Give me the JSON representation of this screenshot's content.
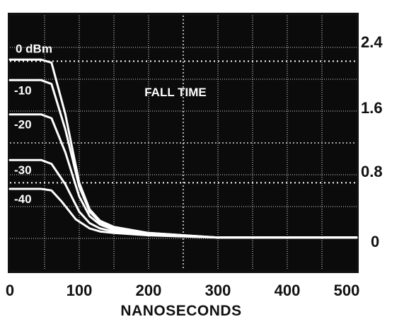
{
  "chart_data": {
    "type": "line",
    "title": "FALL TIME",
    "xlabel": "NANOSECONDS",
    "ylabel": "",
    "xlim": [
      0,
      500
    ],
    "ylim": [
      -0.35,
      3.0
    ],
    "x_ticks": [
      "0",
      "100",
      "200",
      "300",
      "400",
      "500"
    ],
    "y_ticks": [
      "2.4",
      "1.6",
      "0.8",
      "0"
    ],
    "grid": true,
    "colors": {
      "background": "#111111",
      "screen": "#0b0b0b",
      "trace": "#ffffff",
      "grid": "#d8d8d8",
      "text": "#111111"
    },
    "series": [
      {
        "name": "0 dBm",
        "x": [
          0,
          45,
          60,
          80,
          100,
          115,
          130,
          150,
          200,
          300,
          500
        ],
        "values": [
          2.42,
          2.42,
          2.38,
          1.7,
          0.8,
          0.45,
          0.3,
          0.22,
          0.14,
          0.08,
          0.08
        ]
      },
      {
        "name": "-10",
        "x": [
          0,
          45,
          60,
          80,
          100,
          115,
          130,
          150,
          200,
          300,
          500
        ],
        "values": [
          2.15,
          2.15,
          2.1,
          1.5,
          0.75,
          0.42,
          0.28,
          0.2,
          0.14,
          0.08,
          0.08
        ]
      },
      {
        "name": "-20",
        "x": [
          0,
          45,
          60,
          80,
          100,
          115,
          130,
          150,
          200,
          300,
          500
        ],
        "values": [
          1.7,
          1.7,
          1.65,
          1.2,
          0.62,
          0.36,
          0.25,
          0.18,
          0.13,
          0.08,
          0.08
        ]
      },
      {
        "name": "-30",
        "x": [
          0,
          45,
          60,
          80,
          100,
          115,
          130,
          150,
          200,
          300,
          500
        ],
        "values": [
          1.1,
          1.1,
          1.05,
          0.78,
          0.42,
          0.27,
          0.2,
          0.16,
          0.12,
          0.08,
          0.08
        ]
      },
      {
        "name": "-40",
        "x": [
          0,
          45,
          60,
          75,
          95,
          115,
          130,
          150,
          200,
          300,
          500
        ],
        "values": [
          0.72,
          0.72,
          0.7,
          0.55,
          0.32,
          0.2,
          0.16,
          0.14,
          0.11,
          0.08,
          0.08
        ]
      }
    ]
  }
}
